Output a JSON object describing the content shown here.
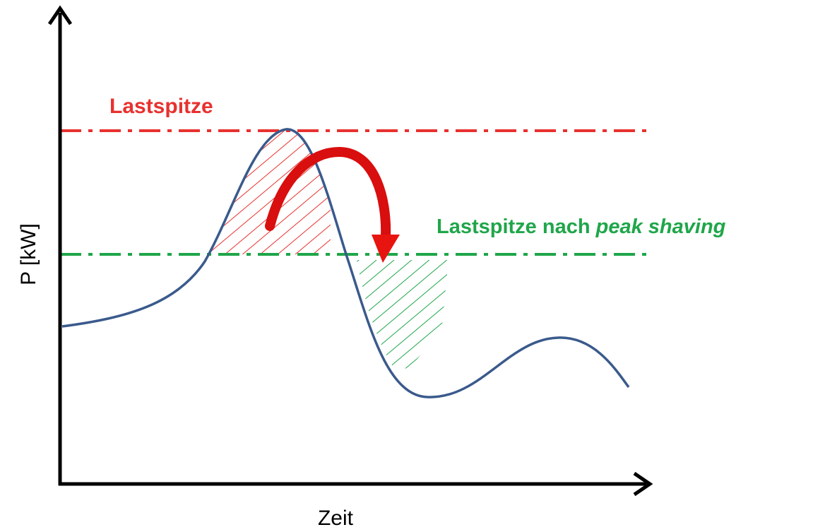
{
  "labels": {
    "peak": "Lastspitze",
    "shaved_prefix": "Lastspitze nach",
    "shaved_emphasis": "peak shaving"
  },
  "axes": {
    "y": "P [kW]",
    "x": "Zeit"
  }
}
